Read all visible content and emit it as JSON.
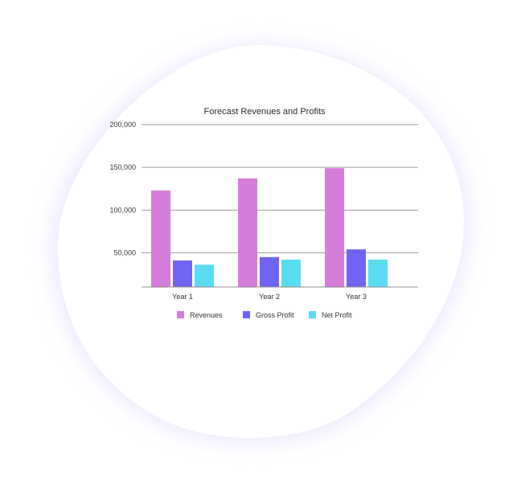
{
  "colors": {
    "blob_glow": "#ecebfd",
    "blob_fill": "#ffffff",
    "grid": "#9e9e9e",
    "axis": "#8c8c8c",
    "text": "#333333",
    "revenues": "#d67ddb",
    "gross_profit": "#7064f4",
    "net_profit": "#59dcf2"
  },
  "chart_data": {
    "type": "bar",
    "title": "Forecast Revenues and Profits",
    "xlabel": "",
    "ylabel": "",
    "categories": [
      "Year 1",
      "Year 2",
      "Year 3"
    ],
    "ylim": [
      10000,
      200000
    ],
    "yticks": [
      {
        "value": 50000,
        "label": "50,000"
      },
      {
        "value": 100000,
        "label": "100,000"
      },
      {
        "value": 150000,
        "label": "150,000"
      },
      {
        "value": 200000,
        "label": "200,000"
      }
    ],
    "grid": true,
    "legend_position": "bottom",
    "series": [
      {
        "name": "Revenues",
        "color_key": "revenues",
        "values": [
          123000,
          137000,
          149000
        ]
      },
      {
        "name": "Gross Profit",
        "color_key": "gross_profit",
        "values": [
          41000,
          45000,
          54000
        ]
      },
      {
        "name": "Net Profit",
        "color_key": "net_profit",
        "values": [
          36000,
          42000,
          42000
        ]
      }
    ]
  }
}
